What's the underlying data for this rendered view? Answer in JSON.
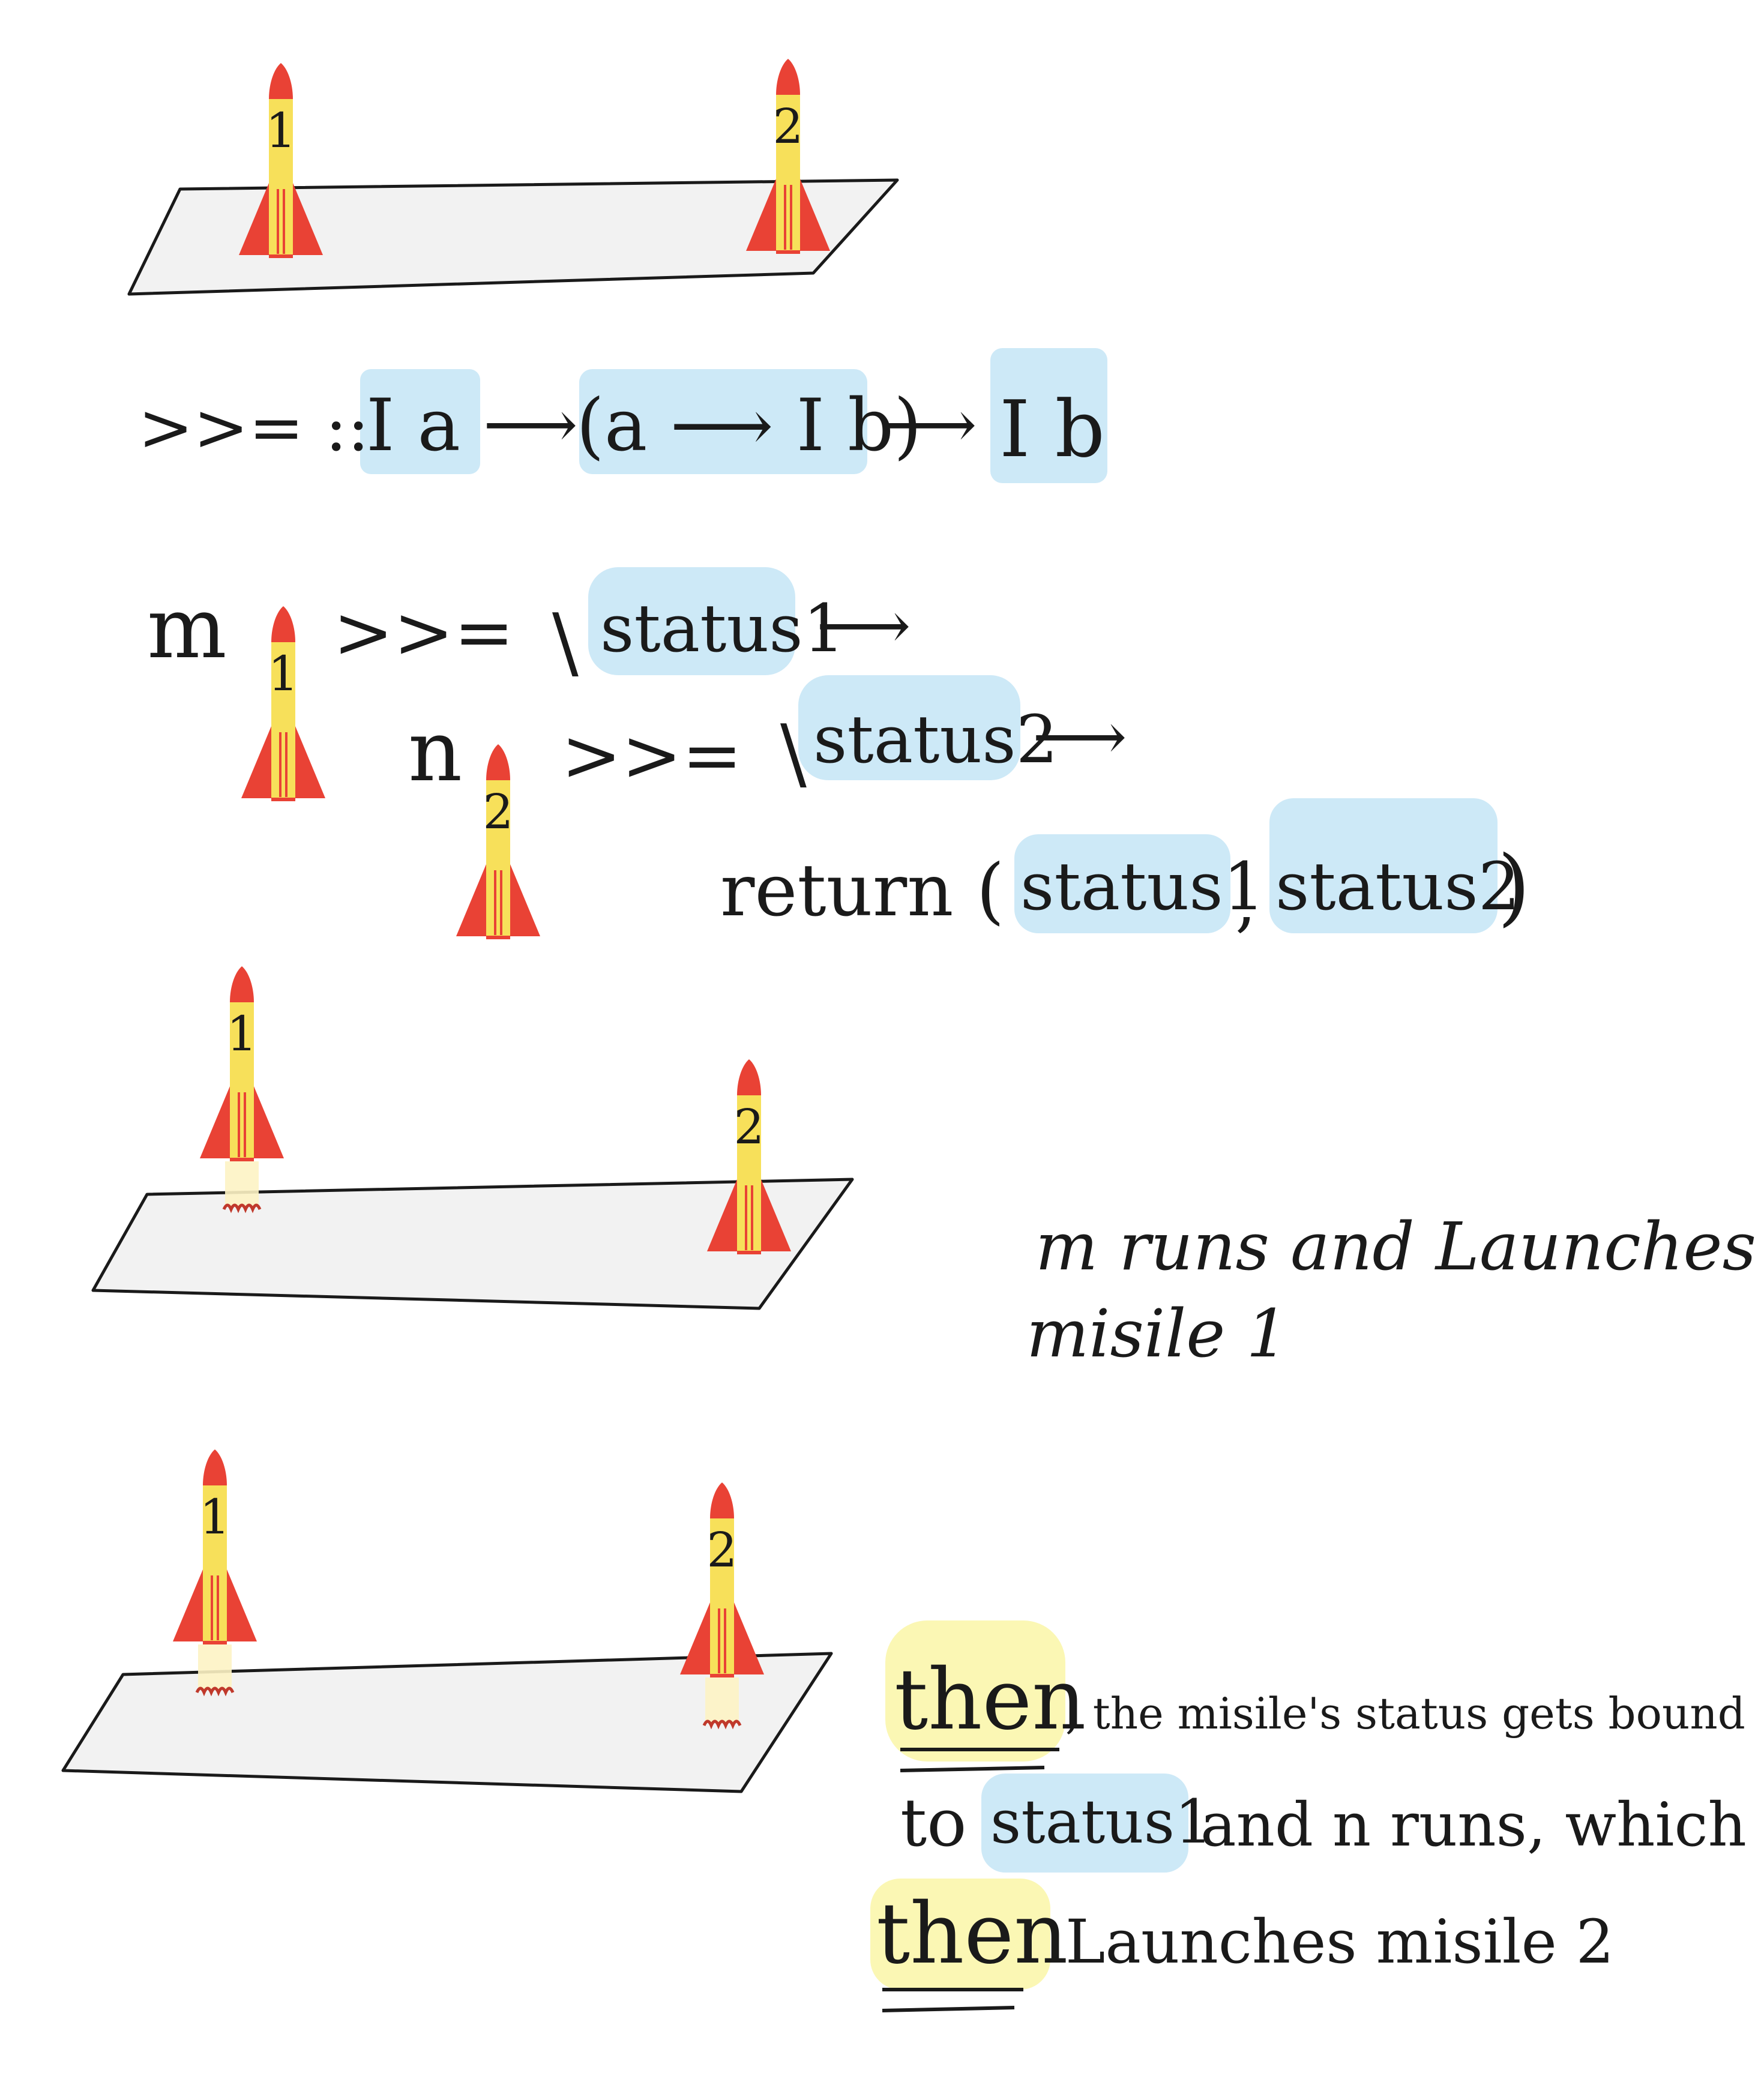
{
  "rockets": {
    "one": "1",
    "two": "2"
  },
  "bind_signature": {
    "op": ">>= ::",
    "ia": "I a",
    "arrow1": "⟶",
    "middle": "(a ⟶ I b)",
    "arrow2": "⟶",
    "ib": "I b"
  },
  "code": {
    "line1_m": "m",
    "line1_bind": ">>=",
    "line1_lambda": "\\",
    "line1_var": "status1",
    "line1_arrow": "⟶",
    "line2_n": "n",
    "line2_bind": ">>=",
    "line2_lambda": "\\",
    "line2_var": "status2",
    "line2_arrow": "⟶",
    "line3_return": "return (",
    "line3_var1": "status1",
    "line3_comma": ",",
    "line3_var2": "status2",
    "line3_close": ")"
  },
  "caption1": {
    "line1": "m runs and Launches",
    "line2": "misile 1"
  },
  "caption2": {
    "then1": "then",
    "line1_rest": ", the misile's status gets bound",
    "line2_to": "to",
    "line2_var": "status1",
    "line2_rest": "and n runs, which",
    "then2": "then",
    "line3_rest": "Launches misile 2"
  },
  "colors": {
    "highlight_blue": "#cde9f7",
    "highlight_yellow": "#fbf7b4",
    "rocket_body": "#f7e05a",
    "rocket_fins": "#e94235",
    "pad": "#f2f2f2"
  }
}
